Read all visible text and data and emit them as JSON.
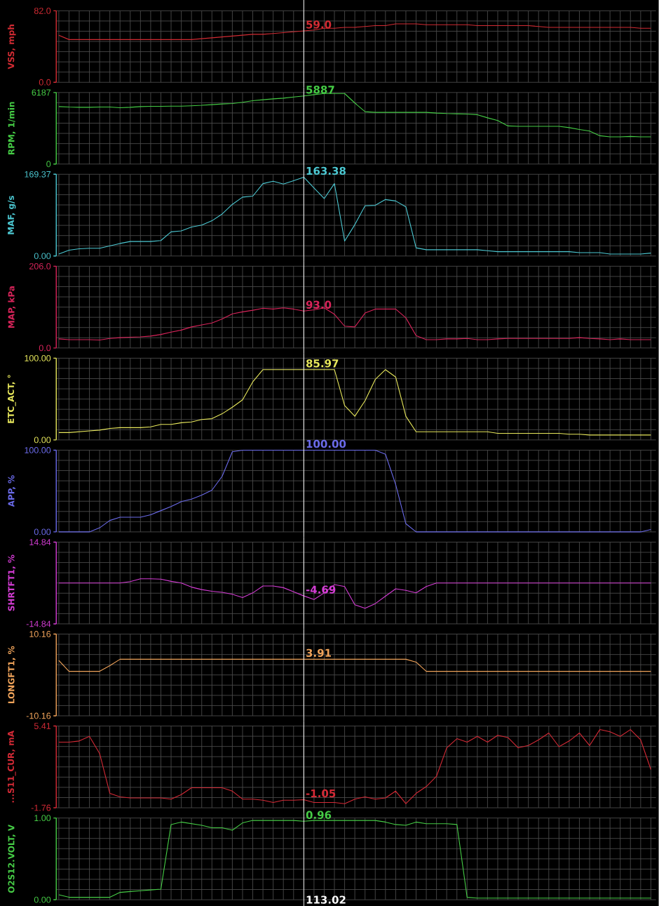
{
  "chart_data": [
    {
      "type": "line",
      "ylabel": "VSS, mph",
      "categories": [
        null,
        null,
        null,
        null,
        null,
        null,
        null,
        null,
        null,
        null,
        null,
        null,
        null,
        null,
        null,
        null,
        null,
        null,
        null,
        null,
        null,
        null,
        null,
        null,
        null,
        null,
        null,
        null,
        null,
        null,
        null,
        null,
        null,
        null,
        null,
        null,
        null,
        null,
        null,
        null,
        null,
        null,
        null,
        null,
        null,
        null,
        null,
        null,
        null,
        null,
        null,
        null,
        null,
        null,
        null,
        null,
        null,
        null,
        null
      ],
      "values": [
        54,
        49,
        49,
        49,
        49,
        49,
        49,
        49,
        49,
        49,
        49,
        49,
        49,
        49,
        50,
        51,
        52,
        53,
        54,
        55,
        55,
        56,
        57,
        58,
        59.0,
        60,
        62,
        62,
        63,
        63,
        64,
        65,
        65,
        67,
        67,
        67,
        66,
        66,
        66,
        66,
        66,
        65,
        65,
        65,
        65,
        65,
        65,
        64,
        63,
        63,
        63,
        63,
        63,
        63,
        63,
        63,
        63,
        62,
        62
      ],
      "value_labels": [
        null,
        null,
        null,
        null,
        null,
        null,
        null,
        null,
        null,
        null,
        null,
        null,
        null,
        null,
        null,
        null,
        null,
        null,
        null,
        null,
        null,
        null,
        null,
        null,
        "59.0",
        null,
        null,
        null,
        null,
        null,
        null,
        null,
        null,
        null,
        null,
        null,
        null,
        null,
        null,
        null,
        null,
        null,
        null,
        null,
        null,
        null,
        null,
        null,
        null,
        null,
        null,
        null,
        null,
        null,
        null,
        null,
        null,
        null,
        null
      ],
      "color": "#d22b33",
      "ylim": [
        0,
        82
      ],
      "yticks": [
        {
          "value": 0,
          "label": "0.0"
        },
        {
          "value": 82,
          "label": "82.0"
        }
      ],
      "grid": true
    },
    {
      "type": "line",
      "ylabel": "RPM, 1/min",
      "categories": [
        null,
        null,
        null,
        null,
        null,
        null,
        null,
        null,
        null,
        null,
        null,
        null,
        null,
        null,
        null,
        null,
        null,
        null,
        null,
        null,
        null,
        null,
        null,
        null,
        null,
        null,
        null,
        null,
        null,
        null,
        null,
        null,
        null,
        null,
        null,
        null,
        null,
        null,
        null,
        null,
        null,
        null,
        null,
        null,
        null,
        null,
        null,
        null,
        null,
        null,
        null,
        null,
        null,
        null,
        null,
        null,
        null,
        null,
        null
      ],
      "values": [
        4970,
        4930,
        4910,
        4910,
        4930,
        4930,
        4870,
        4910,
        4970,
        4990,
        4990,
        5010,
        5010,
        5040,
        5080,
        5140,
        5200,
        5240,
        5340,
        5480,
        5560,
        5640,
        5700,
        5800,
        5887,
        6000,
        6100,
        6100,
        6100,
        5280,
        4530,
        4470,
        4470,
        4470,
        4470,
        4470,
        4470,
        4410,
        4370,
        4350,
        4330,
        4270,
        4000,
        3760,
        3300,
        3260,
        3260,
        3260,
        3260,
        3260,
        3150,
        2990,
        2850,
        2450,
        2350,
        2350,
        2390,
        2350,
        2350
      ],
      "value_labels": [
        null,
        null,
        null,
        null,
        null,
        null,
        null,
        null,
        null,
        null,
        null,
        null,
        null,
        null,
        null,
        null,
        null,
        null,
        null,
        null,
        null,
        null,
        null,
        null,
        "5887",
        null,
        null,
        null,
        null,
        null,
        null,
        null,
        null,
        null,
        null,
        null,
        null,
        null,
        null,
        null,
        null,
        null,
        null,
        null,
        null,
        null,
        null,
        null,
        null,
        null,
        null,
        null,
        null,
        null,
        null,
        null,
        null,
        null,
        null
      ],
      "color": "#45cc45",
      "ylim": [
        0,
        6187
      ],
      "yticks": [
        0,
        6187
      ],
      "grid": true
    },
    {
      "type": "line",
      "ylabel": "MAF, g/s",
      "categories": [
        null,
        null,
        null,
        null,
        null,
        null,
        null,
        null,
        null,
        null,
        null,
        null,
        null,
        null,
        null,
        null,
        null,
        null,
        null,
        null,
        null,
        null,
        null,
        null,
        null,
        null,
        null,
        null,
        null,
        null,
        null,
        null,
        null,
        null,
        null,
        null,
        null,
        null,
        null,
        null,
        null,
        null,
        null,
        null,
        null,
        null,
        null,
        null,
        null,
        null,
        null,
        null,
        null,
        null,
        null,
        null,
        null,
        null,
        null
      ],
      "values": [
        4,
        12,
        15,
        16,
        16,
        21,
        26,
        30,
        30,
        30,
        32,
        50,
        52,
        60,
        64,
        73,
        87,
        107,
        122,
        124,
        150,
        155,
        149,
        156,
        163.38,
        141,
        119,
        150,
        31,
        65,
        104,
        105,
        117,
        114,
        102,
        17,
        13,
        13,
        13,
        13,
        13,
        13,
        11,
        9,
        9,
        9,
        9,
        9,
        9,
        9,
        9,
        7,
        7,
        7,
        4,
        4,
        4,
        4,
        6
      ],
      "value_labels": [
        null,
        null,
        null,
        null,
        null,
        null,
        null,
        null,
        null,
        null,
        null,
        null,
        null,
        null,
        null,
        null,
        null,
        null,
        null,
        null,
        null,
        null,
        null,
        null,
        "163.38",
        null,
        null,
        null,
        null,
        null,
        null,
        null,
        null,
        null,
        null,
        null,
        null,
        null,
        null,
        null,
        null,
        null,
        null,
        null,
        null,
        null,
        null,
        null,
        null,
        null,
        null,
        null,
        null,
        null,
        null,
        null,
        null,
        null,
        null
      ],
      "color": "#4cc8d2",
      "ylim": [
        0,
        169.37
      ],
      "yticks": [
        {
          "value": 0,
          "label": "0.00"
        },
        169.37
      ],
      "grid": true
    },
    {
      "type": "line",
      "ylabel": "MAP, kPa",
      "categories": [
        null,
        null,
        null,
        null,
        null,
        null,
        null,
        null,
        null,
        null,
        null,
        null,
        null,
        null,
        null,
        null,
        null,
        null,
        null,
        null,
        null,
        null,
        null,
        null,
        null,
        null,
        null,
        null,
        null,
        null,
        null,
        null,
        null,
        null,
        null,
        null,
        null,
        null,
        null,
        null,
        null,
        null,
        null,
        null,
        null,
        null,
        null,
        null,
        null,
        null,
        null,
        null,
        null,
        null,
        null,
        null,
        null,
        null,
        null
      ],
      "values": [
        23,
        21,
        21,
        21,
        20,
        24,
        26,
        27,
        28,
        30,
        34,
        40,
        45,
        53,
        58,
        63,
        73,
        86,
        91,
        95,
        100,
        98,
        101,
        98,
        93.0,
        96,
        101,
        85,
        55,
        53,
        88,
        98,
        98,
        98,
        76,
        31,
        21,
        21,
        23,
        23,
        24,
        21,
        21,
        23,
        24,
        24,
        24,
        24,
        24,
        24,
        24,
        26,
        24,
        23,
        21,
        23,
        21,
        21,
        21
      ],
      "value_labels": [
        null,
        null,
        null,
        null,
        null,
        null,
        null,
        null,
        null,
        null,
        null,
        null,
        null,
        null,
        null,
        null,
        null,
        null,
        null,
        null,
        null,
        null,
        null,
        null,
        "93.0",
        null,
        null,
        null,
        null,
        null,
        null,
        null,
        null,
        null,
        null,
        null,
        null,
        null,
        null,
        null,
        null,
        null,
        null,
        null,
        null,
        null,
        null,
        null,
        null,
        null,
        null,
        null,
        null,
        null,
        null,
        null,
        null,
        null,
        null
      ],
      "color": "#d8245a",
      "ylim": [
        0,
        206
      ],
      "yticks": [
        {
          "value": 0,
          "label": "0.0"
        },
        {
          "value": 206,
          "label": "206.0"
        }
      ],
      "grid": true
    },
    {
      "type": "line",
      "ylabel": "ETC_ACT, °",
      "categories": [
        null,
        null,
        null,
        null,
        null,
        null,
        null,
        null,
        null,
        null,
        null,
        null,
        null,
        null,
        null,
        null,
        null,
        null,
        null,
        null,
        null,
        null,
        null,
        null,
        null,
        null,
        null,
        null,
        null,
        null,
        null,
        null,
        null,
        null,
        null,
        null,
        null,
        null,
        null,
        null,
        null,
        null,
        null,
        null,
        null,
        null,
        null,
        null,
        null,
        null,
        null,
        null,
        null,
        null,
        null,
        null,
        null,
        null,
        null
      ],
      "values": [
        9,
        9,
        10,
        11,
        12,
        14,
        15,
        15,
        15,
        16,
        19,
        19,
        21,
        22,
        25,
        26,
        32,
        40,
        49,
        71,
        86,
        86,
        86,
        86,
        85.97,
        86,
        86,
        86,
        42,
        29,
        48,
        74,
        86,
        77,
        29,
        10,
        10,
        10,
        10,
        10,
        10,
        10,
        10,
        8,
        8,
        8,
        8,
        8,
        8,
        8,
        7,
        7,
        6,
        6,
        6,
        6,
        6,
        6,
        6
      ],
      "value_labels": [
        null,
        null,
        null,
        null,
        null,
        null,
        null,
        null,
        null,
        null,
        null,
        null,
        null,
        null,
        null,
        null,
        null,
        null,
        null,
        null,
        null,
        null,
        null,
        null,
        "85.97",
        null,
        null,
        null,
        null,
        null,
        null,
        null,
        null,
        null,
        null,
        null,
        null,
        null,
        null,
        null,
        null,
        null,
        null,
        null,
        null,
        null,
        null,
        null,
        null,
        null,
        null,
        null,
        null,
        null,
        null,
        null,
        null,
        null,
        null
      ],
      "color": "#e8e85c",
      "ylim": [
        0,
        100
      ],
      "yticks": [
        {
          "value": 0,
          "label": "0.00"
        },
        {
          "value": 100,
          "label": "100.00"
        }
      ],
      "grid": true
    },
    {
      "type": "line",
      "ylabel": "APP, %",
      "categories": [
        null,
        null,
        null,
        null,
        null,
        null,
        null,
        null,
        null,
        null,
        null,
        null,
        null,
        null,
        null,
        null,
        null,
        null,
        null,
        null,
        null,
        null,
        null,
        null,
        null,
        null,
        null,
        null,
        null,
        null,
        null,
        null,
        null,
        null,
        null,
        null,
        null,
        null,
        null,
        null,
        null,
        null,
        null,
        null,
        null,
        null,
        null,
        null,
        null,
        null,
        null,
        null,
        null,
        null,
        null,
        null,
        null,
        null,
        null
      ],
      "values": [
        0,
        0,
        0,
        0,
        5,
        14,
        18,
        18,
        18,
        21,
        26,
        31,
        37,
        40,
        45,
        51,
        68,
        98,
        100,
        100,
        100,
        100,
        100,
        100,
        100,
        100,
        100,
        100,
        100,
        100,
        100,
        100,
        95,
        58,
        10,
        0,
        0,
        0,
        0,
        0,
        0,
        0,
        0,
        0,
        0,
        0,
        0,
        0,
        0,
        0,
        0,
        0,
        0,
        0,
        0,
        0,
        0,
        0,
        3
      ],
      "value_labels": [
        null,
        null,
        null,
        null,
        null,
        null,
        null,
        null,
        null,
        null,
        null,
        null,
        null,
        null,
        null,
        null,
        null,
        null,
        null,
        null,
        null,
        null,
        null,
        null,
        "100.00",
        null,
        null,
        null,
        null,
        null,
        null,
        null,
        null,
        null,
        null,
        null,
        null,
        null,
        null,
        null,
        null,
        null,
        null,
        null,
        null,
        null,
        null,
        null,
        null,
        null,
        null,
        null,
        null,
        null,
        null,
        null,
        null,
        null,
        null
      ],
      "color": "#6a6ae8",
      "ylim": [
        0,
        100
      ],
      "yticks": [
        {
          "value": 0,
          "label": "0.00"
        },
        {
          "value": 100,
          "label": "100.00"
        }
      ],
      "grid": true
    },
    {
      "type": "line",
      "ylabel": "SHRTFT1, %",
      "categories": [
        null,
        null,
        null,
        null,
        null,
        null,
        null,
        null,
        null,
        null,
        null,
        null,
        null,
        null,
        null,
        null,
        null,
        null,
        null,
        null,
        null,
        null,
        null,
        null,
        null,
        null,
        null,
        null,
        null,
        null,
        null,
        null,
        null,
        null,
        null,
        null,
        null,
        null,
        null,
        null,
        null,
        null,
        null,
        null,
        null,
        null,
        null,
        null,
        null,
        null,
        null,
        null,
        null,
        null,
        null,
        null,
        null,
        null,
        null
      ],
      "values": [
        0,
        0,
        0,
        0,
        0,
        0,
        0,
        0.5,
        1.5,
        1.5,
        1.4,
        0.6,
        0,
        -1.5,
        -2.4,
        -3.0,
        -3.4,
        -4.1,
        -5.3,
        -3.6,
        -1.1,
        -1.1,
        -1.7,
        -3.2,
        -4.69,
        -6.0,
        -3.6,
        -0.6,
        -1.3,
        -7.9,
        -9.2,
        -7.5,
        -4.8,
        -2.1,
        -2.7,
        -3.6,
        -1.3,
        0,
        0,
        0,
        0,
        0,
        0,
        0,
        0,
        0,
        0,
        0,
        0,
        0,
        0,
        0,
        0,
        0,
        0,
        0,
        0,
        0,
        0
      ],
      "value_labels": [
        null,
        null,
        null,
        null,
        null,
        null,
        null,
        null,
        null,
        null,
        null,
        null,
        null,
        null,
        null,
        null,
        null,
        null,
        null,
        null,
        null,
        null,
        null,
        null,
        "-4.69",
        null,
        null,
        null,
        null,
        null,
        null,
        null,
        null,
        null,
        null,
        null,
        null,
        null,
        null,
        null,
        null,
        null,
        null,
        null,
        null,
        null,
        null,
        null,
        null,
        null,
        null,
        null,
        null,
        null,
        null,
        null,
        null,
        null,
        null
      ],
      "color": "#d43cd4",
      "ylim": [
        -14.84,
        14.84
      ],
      "yticks": [
        -14.84,
        14.84
      ],
      "grid": true
    },
    {
      "type": "line",
      "ylabel": "LONGFT1, %",
      "categories": [
        null,
        null,
        null,
        null,
        null,
        null,
        null,
        null,
        null,
        null,
        null,
        null,
        null,
        null,
        null,
        null,
        null,
        null,
        null,
        null,
        null,
        null,
        null,
        null,
        null,
        null,
        null,
        null,
        null,
        null,
        null,
        null,
        null,
        null,
        null,
        null,
        null,
        null,
        null,
        null,
        null,
        null,
        null,
        null,
        null,
        null,
        null,
        null,
        null,
        null,
        null,
        null,
        null,
        null,
        null,
        null,
        null,
        null,
        null
      ],
      "values": [
        3.6,
        0.9,
        0.9,
        0.9,
        0.9,
        2.3,
        3.9,
        3.9,
        3.9,
        3.9,
        3.9,
        3.9,
        3.9,
        3.9,
        3.9,
        3.9,
        3.9,
        3.9,
        3.9,
        3.9,
        3.9,
        3.9,
        3.9,
        3.9,
        3.91,
        3.9,
        3.9,
        3.9,
        3.9,
        3.9,
        3.9,
        3.9,
        3.9,
        3.9,
        3.9,
        3.2,
        0.9,
        0.9,
        0.9,
        0.9,
        0.9,
        0.9,
        0.9,
        0.9,
        0.9,
        0.9,
        0.9,
        0.9,
        0.9,
        0.9,
        0.9,
        0.9,
        0.9,
        0.9,
        0.9,
        0.9,
        0.9,
        0.9,
        0.9
      ],
      "value_labels": [
        null,
        null,
        null,
        null,
        null,
        null,
        null,
        null,
        null,
        null,
        null,
        null,
        null,
        null,
        null,
        null,
        null,
        null,
        null,
        null,
        null,
        null,
        null,
        null,
        "3.91",
        null,
        null,
        null,
        null,
        null,
        null,
        null,
        null,
        null,
        null,
        null,
        null,
        null,
        null,
        null,
        null,
        null,
        null,
        null,
        null,
        null,
        null,
        null,
        null,
        null,
        null,
        null,
        null,
        null,
        null,
        null,
        null,
        null,
        null
      ],
      "color": "#f0a35a",
      "ylim": [
        -10.16,
        10.16
      ],
      "yticks": [
        -10.16,
        10.16
      ],
      "grid": true
    },
    {
      "type": "line",
      "ylabel": "...S11_CUR, mA",
      "categories": [
        null,
        null,
        null,
        null,
        null,
        null,
        null,
        null,
        null,
        null,
        null,
        null,
        null,
        null,
        null,
        null,
        null,
        null,
        null,
        null,
        null,
        null,
        null,
        null,
        null,
        null,
        null,
        null,
        null,
        null,
        null,
        null,
        null,
        null,
        null,
        null,
        null,
        null,
        null,
        null,
        null,
        null,
        null,
        null,
        null,
        null,
        null,
        null,
        null,
        null,
        null,
        null,
        null,
        null,
        null,
        null,
        null,
        null,
        null
      ],
      "values": [
        4.0,
        4.0,
        4.1,
        4.5,
        3.0,
        -0.5,
        -0.8,
        -0.9,
        -0.9,
        -0.9,
        -0.9,
        -1.0,
        -0.6,
        0.0,
        0.0,
        0.0,
        0.0,
        -0.3,
        -1.0,
        -1.0,
        -1.1,
        -1.3,
        -1.1,
        -1.1,
        -1.05,
        -1.3,
        -1.3,
        -1.3,
        -1.4,
        -1.0,
        -0.8,
        -1.0,
        -0.9,
        -0.3,
        -1.4,
        -0.5,
        0.1,
        1.0,
        3.5,
        4.3,
        4.0,
        4.5,
        4.0,
        4.6,
        4.4,
        3.5,
        3.7,
        4.2,
        4.8,
        3.6,
        4.1,
        4.8,
        3.7,
        5.1,
        4.9,
        4.5,
        5.1,
        4.2,
        1.6
      ],
      "value_labels": [
        null,
        null,
        null,
        null,
        null,
        null,
        null,
        null,
        null,
        null,
        null,
        null,
        null,
        null,
        null,
        null,
        null,
        null,
        null,
        null,
        null,
        null,
        null,
        null,
        "-1.05",
        null,
        null,
        null,
        null,
        null,
        null,
        null,
        null,
        null,
        null,
        null,
        null,
        null,
        null,
        null,
        null,
        null,
        null,
        null,
        null,
        null,
        null,
        null,
        null,
        null,
        null,
        null,
        null,
        null,
        null,
        null,
        null,
        null,
        null
      ],
      "color": "#d42a36",
      "ylim": [
        -1.76,
        5.41
      ],
      "yticks": [
        -1.76,
        5.41
      ],
      "grid": true
    },
    {
      "type": "line",
      "ylabel": "O2S12.VOLT, V",
      "categories": [
        null,
        null,
        null,
        null,
        null,
        null,
        null,
        null,
        null,
        null,
        null,
        null,
        null,
        null,
        null,
        null,
        null,
        null,
        null,
        null,
        null,
        null,
        null,
        null,
        null,
        null,
        null,
        null,
        null,
        null,
        null,
        null,
        null,
        null,
        null,
        null,
        null,
        null,
        null,
        null,
        null,
        null,
        null,
        null,
        null,
        null,
        null,
        null,
        null,
        null,
        null,
        null,
        null,
        null,
        null,
        null,
        null,
        null,
        null
      ],
      "values": [
        0.06,
        0.03,
        0.03,
        0.03,
        0.03,
        0.03,
        0.09,
        0.1,
        0.11,
        0.12,
        0.13,
        0.92,
        0.95,
        0.93,
        0.91,
        0.88,
        0.88,
        0.85,
        0.94,
        0.97,
        0.97,
        0.97,
        0.97,
        0.97,
        0.96,
        0.97,
        0.97,
        0.97,
        0.97,
        0.97,
        0.97,
        0.97,
        0.95,
        0.92,
        0.91,
        0.95,
        0.93,
        0.93,
        0.93,
        0.92,
        0.03,
        0.02,
        0.02,
        0.02,
        0.02,
        0.02,
        0.02,
        0.02,
        0.02,
        0.02,
        0.02,
        0.02,
        0.02,
        0.02,
        0.02,
        0.02,
        0.02,
        0.02,
        0.02
      ],
      "value_labels": [
        null,
        null,
        null,
        null,
        null,
        null,
        null,
        null,
        null,
        null,
        null,
        null,
        null,
        null,
        null,
        null,
        null,
        null,
        null,
        null,
        null,
        null,
        null,
        null,
        "0.96",
        null,
        null,
        null,
        null,
        null,
        null,
        null,
        null,
        null,
        null,
        null,
        null,
        null,
        null,
        null,
        null,
        null,
        null,
        null,
        null,
        null,
        null,
        null,
        null,
        null,
        null,
        null,
        null,
        null,
        null,
        null,
        null,
        null,
        null
      ],
      "color": "#46cc46",
      "ylim": [
        0,
        1
      ],
      "yticks": [
        {
          "value": 0,
          "label": "0.00"
        },
        {
          "value": 1,
          "label": "1.00"
        }
      ],
      "grid": true,
      "annotations": [
        "113.02"
      ]
    }
  ]
}
